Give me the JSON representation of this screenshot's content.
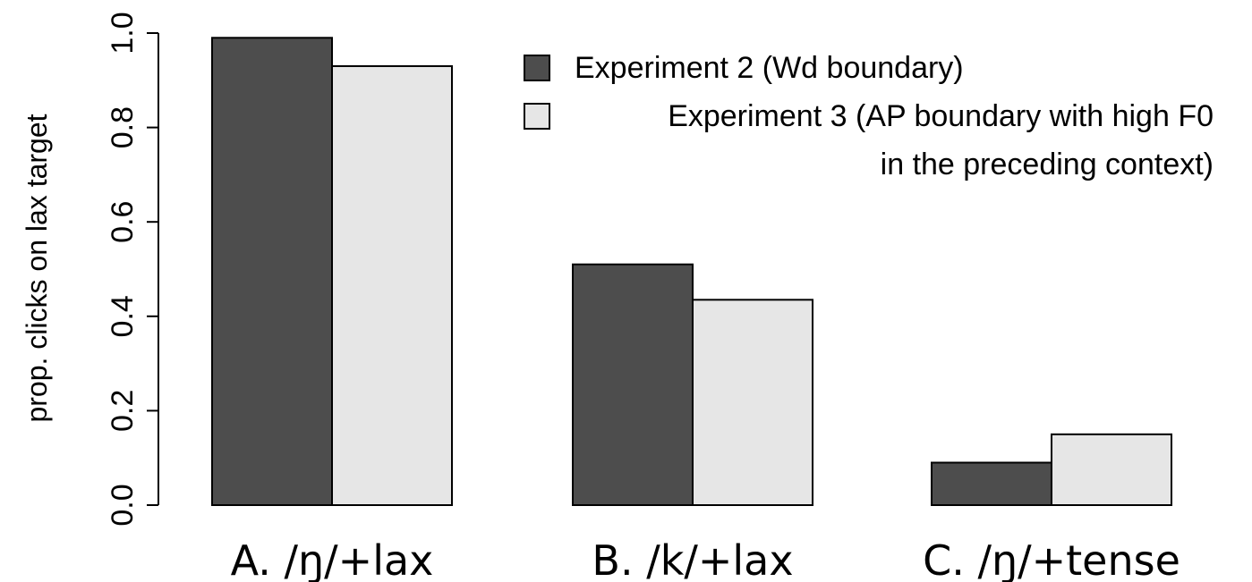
{
  "chart_data": {
    "type": "bar",
    "y_label": "prop. clicks on lax target",
    "categories": [
      "A. /ŋ/+lax",
      "B. /k/+lax",
      "C. /ŋ/+tense"
    ],
    "series": [
      {
        "name": "Experiment 2 (Wd boundary)",
        "color": "#4d4d4d",
        "values": [
          0.99,
          0.51,
          0.09
        ]
      },
      {
        "name": "Experiment 3 (AP boundary with high F0\nin the preceding context)",
        "color": "#e6e6e6",
        "values": [
          0.93,
          0.435,
          0.15
        ]
      }
    ],
    "ylim": [
      0,
      1
    ],
    "yticks": [
      {
        "value": 0,
        "label": "0.0"
      },
      0.2,
      0.4,
      0.6,
      0.8,
      {
        "value": 1,
        "label": "1.0"
      }
    ],
    "legend": "top-right"
  }
}
